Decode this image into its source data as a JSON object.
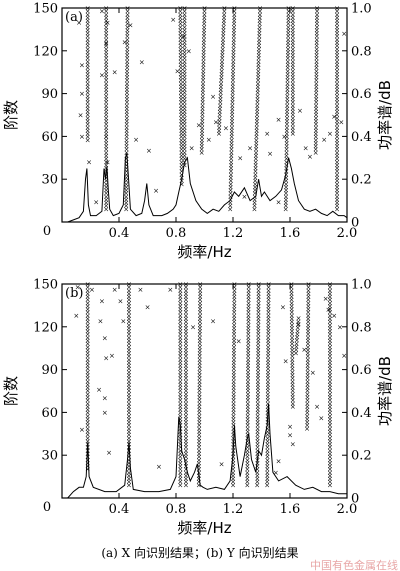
{
  "caption": "(a) X 向识别结果；(b) Y 向识别结果",
  "watermark": "中国有色金属在线",
  "chart_data": [
    {
      "type": "scatter",
      "panel_label": "(a)",
      "xlabel": "频率/Hz",
      "ylabel": "阶数",
      "y2label": "功率谱/dB",
      "xlim": [
        0,
        2.0
      ],
      "ylim": [
        0,
        150
      ],
      "y2lim": [
        0,
        1.0
      ],
      "xticks": [
        "0",
        "0.4",
        "0.8",
        "1.2",
        "1.6",
        "2.0"
      ],
      "yticks": [
        "0",
        "30",
        "60",
        "90",
        "120",
        "150"
      ],
      "y2ticks": [
        "0",
        "0.2",
        "0.4",
        "0.6",
        "0.8",
        "1.0"
      ],
      "stable_lines": [
        {
          "f0": 0.18,
          "f1": 0.18,
          "o0": 150,
          "o1": 56
        },
        {
          "f0": 0.31,
          "f1": 0.31,
          "o0": 150,
          "o1": 8
        },
        {
          "f0": 0.46,
          "f1": 0.45,
          "o0": 150,
          "o1": 8
        },
        {
          "f0": 0.83,
          "f1": 0.84,
          "o0": 150,
          "o1": 26
        },
        {
          "f0": 0.86,
          "f1": 0.86,
          "o0": 150,
          "o1": 40
        },
        {
          "f0": 1.0,
          "f1": 0.98,
          "o0": 150,
          "o1": 48
        },
        {
          "f0": 1.14,
          "f1": 1.1,
          "o0": 150,
          "o1": 60
        },
        {
          "f0": 1.21,
          "f1": 1.18,
          "o0": 150,
          "o1": 8
        },
        {
          "f0": 1.39,
          "f1": 1.35,
          "o0": 150,
          "o1": 8
        },
        {
          "f0": 1.59,
          "f1": 1.57,
          "o0": 150,
          "o1": 8
        },
        {
          "f0": 1.62,
          "f1": 1.62,
          "o0": 150,
          "o1": 60
        },
        {
          "f0": 1.79,
          "f1": 1.78,
          "o0": 150,
          "o1": 48
        },
        {
          "f0": 1.93,
          "f1": 1.93,
          "o0": 150,
          "o1": 8
        }
      ],
      "scatter_points": [
        [
          0.12,
          140
        ],
        [
          0.14,
          110
        ],
        [
          0.14,
          90
        ],
        [
          0.13,
          75
        ],
        [
          0.14,
          60
        ],
        [
          0.19,
          42
        ],
        [
          0.28,
          148
        ],
        [
          0.32,
          140
        ],
        [
          0.31,
          125
        ],
        [
          0.28,
          103
        ],
        [
          0.31,
          60
        ],
        [
          0.32,
          42
        ],
        [
          0.37,
          105
        ],
        [
          0.44,
          126
        ],
        [
          0.48,
          138
        ],
        [
          0.56,
          112
        ],
        [
          0.52,
          58
        ],
        [
          0.61,
          50
        ],
        [
          0.78,
          142
        ],
        [
          0.85,
          130
        ],
        [
          0.89,
          120
        ],
        [
          0.81,
          106
        ],
        [
          0.96,
          68
        ],
        [
          0.91,
          52
        ],
        [
          1.06,
          88
        ],
        [
          1.08,
          70
        ],
        [
          1.03,
          58
        ],
        [
          1.15,
          66
        ],
        [
          1.25,
          45
        ],
        [
          1.32,
          52
        ],
        [
          1.44,
          62
        ],
        [
          1.46,
          48
        ],
        [
          1.52,
          72
        ],
        [
          1.56,
          60
        ],
        [
          1.67,
          78
        ],
        [
          1.71,
          52
        ],
        [
          1.74,
          46
        ],
        [
          1.84,
          58
        ],
        [
          1.88,
          62
        ],
        [
          1.91,
          74
        ],
        [
          1.96,
          70
        ],
        [
          1.98,
          132
        ],
        [
          0.24,
          14
        ],
        [
          0.66,
          22
        ],
        [
          1.28,
          18
        ],
        [
          1.52,
          14
        ]
      ],
      "spectrum": {
        "f": [
          0.0,
          0.04,
          0.08,
          0.12,
          0.15,
          0.165,
          0.175,
          0.185,
          0.2,
          0.24,
          0.28,
          0.295,
          0.305,
          0.315,
          0.325,
          0.335,
          0.36,
          0.4,
          0.43,
          0.445,
          0.455,
          0.465,
          0.48,
          0.52,
          0.56,
          0.58,
          0.595,
          0.61,
          0.64,
          0.7,
          0.74,
          0.78,
          0.8,
          0.82,
          0.84,
          0.86,
          0.88,
          0.9,
          0.94,
          0.98,
          1.02,
          1.06,
          1.1,
          1.14,
          1.18,
          1.21,
          1.24,
          1.28,
          1.32,
          1.36,
          1.38,
          1.4,
          1.42,
          1.46,
          1.5,
          1.54,
          1.57,
          1.59,
          1.61,
          1.63,
          1.66,
          1.7,
          1.74,
          1.78,
          1.82,
          1.86,
          1.9,
          1.94,
          1.98,
          2.0
        ],
        "p": [
          0.0,
          0.0,
          0.01,
          0.02,
          0.05,
          0.2,
          0.25,
          0.08,
          0.03,
          0.03,
          0.05,
          0.25,
          0.2,
          0.26,
          0.15,
          0.06,
          0.03,
          0.04,
          0.08,
          0.3,
          0.32,
          0.22,
          0.06,
          0.03,
          0.04,
          0.1,
          0.18,
          0.08,
          0.03,
          0.03,
          0.04,
          0.06,
          0.08,
          0.14,
          0.2,
          0.28,
          0.3,
          0.18,
          0.1,
          0.06,
          0.04,
          0.06,
          0.05,
          0.08,
          0.1,
          0.14,
          0.12,
          0.16,
          0.1,
          0.12,
          0.2,
          0.12,
          0.14,
          0.1,
          0.12,
          0.15,
          0.22,
          0.3,
          0.25,
          0.18,
          0.1,
          0.06,
          0.05,
          0.06,
          0.04,
          0.03,
          0.05,
          0.03,
          0.03,
          0.02
        ]
      }
    },
    {
      "type": "scatter",
      "panel_label": "(b)",
      "xlabel": "频率/Hz",
      "ylabel": "阶数",
      "y2label": "功率谱/dB",
      "xlim": [
        0,
        2.0
      ],
      "ylim": [
        0,
        150
      ],
      "y2lim": [
        0,
        1.0
      ],
      "xticks": [
        "0",
        "0.4",
        "0.8",
        "1.2",
        "1.6",
        "2.0"
      ],
      "yticks": [
        "0",
        "30",
        "60",
        "90",
        "120",
        "150"
      ],
      "y2ticks": [
        "0",
        "0.2",
        "0.4",
        "0.6",
        "0.8",
        "1.0"
      ],
      "stable_lines": [
        {
          "f0": 0.18,
          "f1": 0.18,
          "o0": 150,
          "o1": 20
        },
        {
          "f0": 0.47,
          "f1": 0.47,
          "o0": 150,
          "o1": 8
        },
        {
          "f0": 0.83,
          "f1": 0.83,
          "o0": 150,
          "o1": 8
        },
        {
          "f0": 0.87,
          "f1": 0.87,
          "o0": 150,
          "o1": 8
        },
        {
          "f0": 0.97,
          "f1": 0.96,
          "o0": 150,
          "o1": 8
        },
        {
          "f0": 1.21,
          "f1": 1.2,
          "o0": 150,
          "o1": 8
        },
        {
          "f0": 1.31,
          "f1": 1.3,
          "o0": 150,
          "o1": 8
        },
        {
          "f0": 1.38,
          "f1": 1.37,
          "o0": 150,
          "o1": 8
        },
        {
          "f0": 1.45,
          "f1": 1.44,
          "o0": 150,
          "o1": 8
        },
        {
          "f0": 1.61,
          "f1": 1.62,
          "o0": 150,
          "o1": 64
        },
        {
          "f0": 1.66,
          "f1": 1.64,
          "o0": 126,
          "o1": 100
        },
        {
          "f0": 1.73,
          "f1": 1.72,
          "o0": 150,
          "o1": 48
        },
        {
          "f0": 1.88,
          "f1": 1.88,
          "o0": 150,
          "o1": 8
        }
      ],
      "scatter_points": [
        [
          0.11,
          148
        ],
        [
          0.1,
          128
        ],
        [
          0.21,
          146
        ],
        [
          0.28,
          138
        ],
        [
          0.27,
          124
        ],
        [
          0.3,
          112
        ],
        [
          0.35,
          100
        ],
        [
          0.31,
          98
        ],
        [
          0.26,
          76
        ],
        [
          0.3,
          70
        ],
        [
          0.3,
          60
        ],
        [
          0.37,
          146
        ],
        [
          0.41,
          138
        ],
        [
          0.43,
          124
        ],
        [
          0.55,
          146
        ],
        [
          0.6,
          134
        ],
        [
          0.76,
          146
        ],
        [
          0.92,
          120
        ],
        [
          1.06,
          124
        ],
        [
          1.24,
          110
        ],
        [
          1.55,
          134
        ],
        [
          1.57,
          96
        ],
        [
          1.66,
          122
        ],
        [
          1.7,
          104
        ],
        [
          1.76,
          88
        ],
        [
          1.79,
          64
        ],
        [
          1.82,
          56
        ],
        [
          1.85,
          140
        ],
        [
          1.87,
          132
        ],
        [
          1.91,
          128
        ],
        [
          1.95,
          120
        ],
        [
          1.98,
          100
        ],
        [
          1.6,
          50
        ],
        [
          1.6,
          44
        ],
        [
          1.62,
          38
        ],
        [
          1.52,
          26
        ],
        [
          0.14,
          48
        ],
        [
          0.33,
          32
        ],
        [
          0.68,
          22
        ],
        [
          1.12,
          24
        ],
        [
          1.5,
          18
        ]
      ],
      "spectrum": {
        "f": [
          0.0,
          0.04,
          0.08,
          0.12,
          0.15,
          0.17,
          0.18,
          0.19,
          0.22,
          0.3,
          0.38,
          0.44,
          0.46,
          0.47,
          0.48,
          0.5,
          0.58,
          0.68,
          0.76,
          0.8,
          0.81,
          0.82,
          0.83,
          0.84,
          0.86,
          0.88,
          0.9,
          0.93,
          0.95,
          0.97,
          0.99,
          1.02,
          1.08,
          1.14,
          1.18,
          1.2,
          1.21,
          1.22,
          1.25,
          1.28,
          1.3,
          1.31,
          1.33,
          1.36,
          1.38,
          1.4,
          1.42,
          1.44,
          1.45,
          1.46,
          1.48,
          1.52,
          1.58,
          1.64,
          1.7,
          1.76,
          1.82,
          1.88,
          1.94,
          2.0
        ],
        "p": [
          0.0,
          0.0,
          0.03,
          0.05,
          0.05,
          0.1,
          0.26,
          0.1,
          0.05,
          0.03,
          0.03,
          0.06,
          0.18,
          0.26,
          0.14,
          0.04,
          0.03,
          0.03,
          0.04,
          0.1,
          0.24,
          0.38,
          0.34,
          0.22,
          0.18,
          0.12,
          0.08,
          0.12,
          0.16,
          0.06,
          0.05,
          0.04,
          0.05,
          0.04,
          0.08,
          0.2,
          0.34,
          0.24,
          0.1,
          0.2,
          0.28,
          0.3,
          0.18,
          0.12,
          0.22,
          0.2,
          0.28,
          0.34,
          0.44,
          0.3,
          0.12,
          0.08,
          0.1,
          0.06,
          0.04,
          0.05,
          0.03,
          0.03,
          0.02,
          0.02
        ]
      }
    }
  ]
}
